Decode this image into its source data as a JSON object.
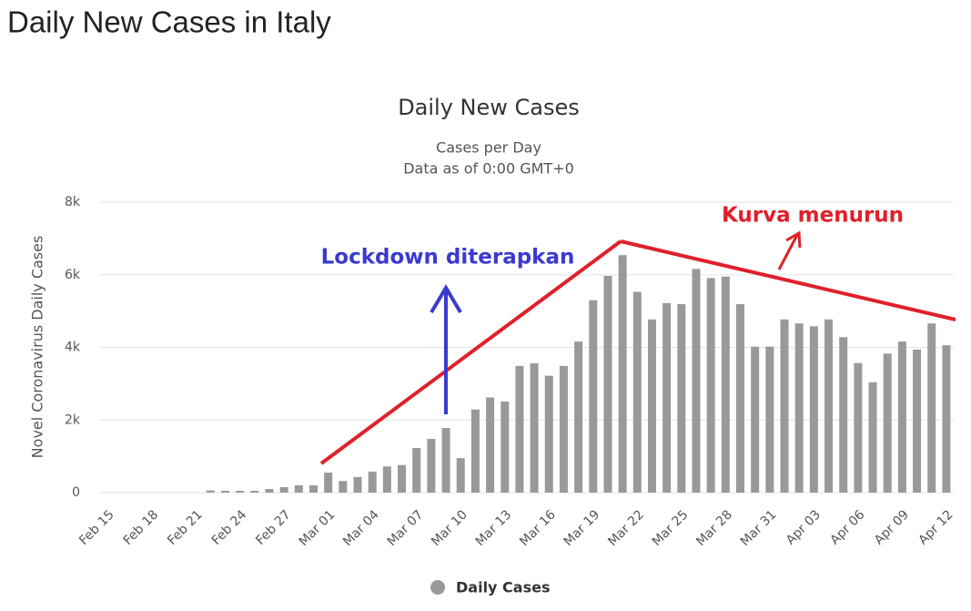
{
  "page_title": "Daily New Cases in Italy",
  "chart_data": {
    "type": "bar",
    "title": "Daily New Cases",
    "subtitle": [
      "Cases per Day",
      "Data as of 0:00 GMT+0"
    ],
    "y_label": "Novel Coronavirus Daily Cases",
    "categories": [
      "Feb 15",
      null,
      null,
      "Feb 18",
      null,
      null,
      "Feb 21",
      null,
      null,
      "Feb 24",
      null,
      null,
      "Feb 27",
      null,
      null,
      "Mar 01",
      null,
      null,
      "Mar 04",
      null,
      null,
      "Mar 07",
      null,
      null,
      "Mar 10",
      null,
      null,
      "Mar 13",
      null,
      null,
      "Mar 16",
      null,
      null,
      "Mar 19",
      null,
      null,
      "Mar 22",
      null,
      null,
      "Mar 25",
      null,
      null,
      "Mar 28",
      null,
      null,
      "Mar 31",
      null,
      null,
      "Apr 03",
      null,
      null,
      "Apr 06",
      null,
      null,
      "Apr 09",
      null,
      null,
      "Apr 12"
    ],
    "series": [
      {
        "name": "Daily Cases",
        "color": "#999999",
        "values": [
          0,
          0,
          0,
          0,
          0,
          0,
          0,
          60,
          50,
          50,
          50,
          100,
          150,
          200,
          200,
          550,
          320,
          430,
          580,
          720,
          760,
          1230,
          1480,
          1780,
          950,
          2290,
          2620,
          2510,
          3490,
          3560,
          3220,
          3490,
          4160,
          5300,
          5970,
          6540,
          5530,
          4770,
          5220,
          5190,
          6160,
          5910,
          5950,
          5190,
          4020,
          4020,
          4770,
          4660,
          4580,
          4770,
          4280,
          3570,
          3040,
          3830,
          4160,
          3940,
          4660,
          4060
        ]
      }
    ],
    "ylim": [
      0,
      8000
    ],
    "yticks": [
      0,
      {
        "value": 2000,
        "label": "2k"
      },
      {
        "value": 4000,
        "label": "4k"
      },
      {
        "value": 6000,
        "label": "6k"
      },
      {
        "value": 8000,
        "label": "8k"
      }
    ],
    "grid": true,
    "legend": "bottom",
    "annotations": [
      "Lockdown diterapkan",
      "Kurva menurun"
    ]
  }
}
